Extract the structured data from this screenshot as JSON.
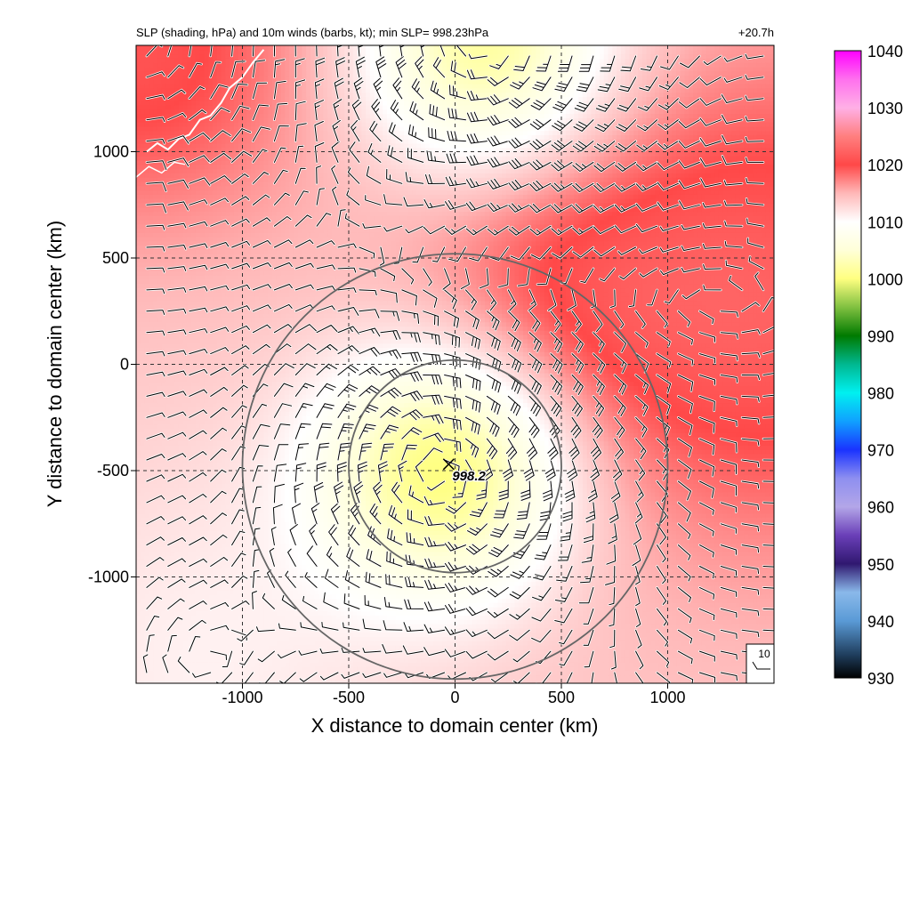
{
  "chart_data": {
    "type": "heatmap",
    "title": "SLP (shading, hPa) and 10m winds (barbs, kt); min SLP= 998.23hPa",
    "forecast_time": "+20.7h",
    "xlabel": "X distance to domain center (km)",
    "ylabel": "Y distance to domain center (km)",
    "xlim": [
      -1500,
      1500
    ],
    "ylim": [
      -1500,
      1500
    ],
    "xticks": [
      -1000,
      -500,
      0,
      500,
      1000
    ],
    "yticks": [
      -1000,
      -500,
      0,
      500,
      1000
    ],
    "xtick_labels": [
      "-1000",
      "-500",
      "0",
      "500",
      "1000"
    ],
    "ytick_labels": [
      "-1000",
      "-500",
      "0",
      "500",
      "1000"
    ],
    "grid": true,
    "min_slp_location": {
      "x": -30,
      "y": -470
    },
    "min_slp_label": "998.2",
    "range_rings_radius_km": [
      500,
      1000
    ],
    "ring_center": {
      "x": 0,
      "y": -480
    },
    "reference_barb_label": "10",
    "colorbar": {
      "min": 930,
      "max": 1040,
      "tick_labels": [
        "1040",
        "1030",
        "1020",
        "1010",
        "1000",
        "990",
        "980",
        "970",
        "960",
        "950",
        "940",
        "930"
      ],
      "tick_values": [
        1040,
        1030,
        1020,
        1010,
        1000,
        990,
        980,
        970,
        960,
        950,
        940,
        930
      ],
      "stops": [
        {
          "value": 930,
          "color": "#000000"
        },
        {
          "value": 934,
          "color": "#1f3d5c"
        },
        {
          "value": 940,
          "color": "#5a9ad6"
        },
        {
          "value": 945,
          "color": "#8ab9ea"
        },
        {
          "value": 950,
          "color": "#301870"
        },
        {
          "value": 955,
          "color": "#6a3fb8"
        },
        {
          "value": 960,
          "color": "#b3a6e8"
        },
        {
          "value": 965,
          "color": "#8e8ff0"
        },
        {
          "value": 970,
          "color": "#1a33ff"
        },
        {
          "value": 975,
          "color": "#10a0ff"
        },
        {
          "value": 980,
          "color": "#00f0f0"
        },
        {
          "value": 985,
          "color": "#00b890"
        },
        {
          "value": 990,
          "color": "#007a00"
        },
        {
          "value": 995,
          "color": "#80c040"
        },
        {
          "value": 1000,
          "color": "#ffff80"
        },
        {
          "value": 1005,
          "color": "#ffffd8"
        },
        {
          "value": 1010,
          "color": "#ffffff"
        },
        {
          "value": 1015,
          "color": "#ffb8b8"
        },
        {
          "value": 1020,
          "color": "#ff4848"
        },
        {
          "value": 1025,
          "color": "#ff7f7f"
        },
        {
          "value": 1030,
          "color": "#ffb0e6"
        },
        {
          "value": 1035,
          "color": "#ff70ee"
        },
        {
          "value": 1040,
          "color": "#ff00ff"
        }
      ]
    },
    "field": {
      "background_hpa": 1014,
      "features": [
        {
          "type": "low",
          "x": -30,
          "y": -470,
          "center_hpa": 998.2,
          "depth_hpa": 15,
          "radius_km": 420
        },
        {
          "type": "low",
          "x": 150,
          "y": 1500,
          "center_hpa": 1002,
          "depth_hpa": 13,
          "radius_km": 420
        },
        {
          "type": "high",
          "x": 1500,
          "y": 300,
          "center_hpa": 1022,
          "depth_hpa": 8,
          "radius_km": 800
        },
        {
          "type": "high",
          "x": -1500,
          "y": 1500,
          "center_hpa": 1021,
          "depth_hpa": 7,
          "radius_km": 600
        },
        {
          "type": "high",
          "x": 400,
          "y": 300,
          "center_hpa": 1018,
          "depth_hpa": 4,
          "radius_km": 500
        },
        {
          "type": "low",
          "x": -1200,
          "y": -1400,
          "center_hpa": 1011,
          "depth_hpa": 3,
          "radius_km": 700
        }
      ]
    },
    "wind_barbs": {
      "spacing_km": 100,
      "speed_range_kt": [
        5,
        30
      ]
    },
    "coastline_color": "#ffffff"
  }
}
